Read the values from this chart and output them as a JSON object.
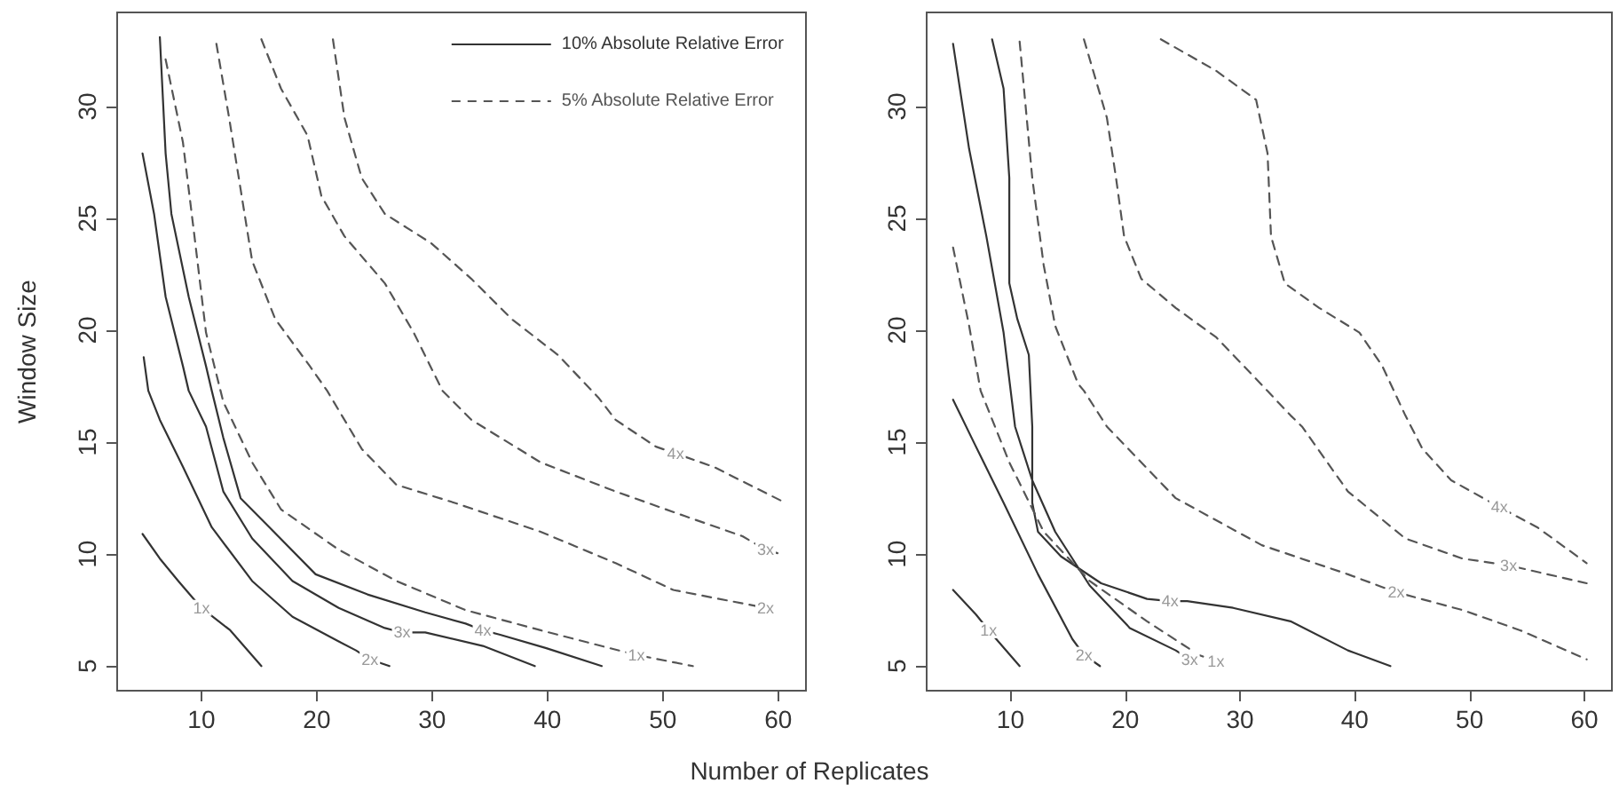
{
  "chart_data": [
    {
      "type": "line",
      "xlabel": "Number of Replicates",
      "ylabel": "Window Size",
      "xlim": [
        2.7,
        62.4
      ],
      "ylim": [
        3.9,
        34.2
      ],
      "xticks": [
        10,
        20,
        30,
        40,
        50,
        60
      ],
      "yticks": [
        5,
        10,
        15,
        20,
        25,
        30
      ],
      "grid": false,
      "legend": "top right",
      "marker": "none",
      "series": [
        {
          "name": "10% Absolute Relative Error",
          "color": "#333333",
          "line_style": "solid",
          "x": [
            4.9,
            6.4,
            8,
            10,
            12.5,
            15.2,
            null,
            5,
            5.4,
            6.4,
            8.4,
            10.9,
            14.4,
            17.9,
            21.9,
            23.4,
            24.6,
            26.3,
            null,
            4.9,
            5.9,
            6.9,
            8.4,
            8.9,
            10.4,
            11.9,
            14.4,
            17.9,
            21.9,
            25.9,
            27.4,
            29.4,
            34.4,
            38.9,
            null,
            6.4,
            6.9,
            7.4,
            8.9,
            10.4,
            10.9,
            11.9,
            13.4,
            15.9,
            19.9,
            24.4,
            29.4,
            32.9,
            34.4,
            35.9,
            39.9,
            44.7
          ],
          "values": [
            10.9,
            9.8,
            8.8,
            7.6,
            6.6,
            5,
            null,
            18.8,
            17.3,
            16,
            13.9,
            11.2,
            8.8,
            7.2,
            6.1,
            5.7,
            5.3,
            5,
            null,
            27.9,
            25.2,
            21.5,
            18.4,
            17.3,
            15.7,
            12.8,
            10.7,
            8.8,
            7.6,
            6.7,
            6.5,
            6.5,
            5.9,
            5,
            null,
            33.1,
            27.9,
            25.2,
            21.5,
            18.4,
            17.3,
            15.2,
            12.5,
            11.2,
            9.1,
            8.2,
            7.4,
            6.9,
            6.6,
            6.4,
            5.8,
            5
          ]
        },
        {
          "name": "5% Absolute Relative Error",
          "color": "#555555",
          "line_style": "dashed",
          "x": [
            6.9,
            8.4,
            9.4,
            10.4,
            11.9,
            14.4,
            16.9,
            21.9,
            26.9,
            32.9,
            39.4,
            45.4,
            47.7,
            52.6,
            null,
            11.3,
            12.4,
            13.4,
            14.4,
            16.4,
            19.4,
            20.9,
            23.9,
            26.9,
            31.9,
            39.4,
            45.9,
            50.9,
            55.9,
            58.9,
            null,
            15.2,
            16.9,
            19.2,
            20.4,
            22.4,
            25.9,
            28.4,
            30.9,
            33.4,
            39.4,
            45.9,
            51.9,
            56.9,
            58.9,
            60.2,
            null,
            21.4,
            22.4,
            23.9,
            25.9,
            29.9,
            33.4,
            36.9,
            40.9,
            44.4,
            45.9,
            49.4,
            51.1,
            54.4,
            60.2
          ],
          "values": [
            32.1,
            28.4,
            24.2,
            19.9,
            16.8,
            14.1,
            12,
            10.2,
            8.8,
            7.5,
            6.6,
            5.8,
            5.5,
            5,
            null,
            32.8,
            29.5,
            26.3,
            23.1,
            20.5,
            18.4,
            17.3,
            14.7,
            13.1,
            12.3,
            11,
            9.6,
            8.4,
            7.9,
            7.6,
            null,
            33,
            30.8,
            28.7,
            26,
            24.2,
            22.1,
            19.9,
            17.3,
            16,
            14.1,
            12.8,
            11.7,
            10.8,
            10.2,
            10,
            null,
            33,
            29.5,
            26.8,
            25.2,
            23.9,
            22.3,
            20.5,
            18.9,
            17,
            16,
            14.8,
            14.5,
            13.9,
            12.4
          ]
        }
      ],
      "annotations": [
        {
          "text": "1x",
          "x": 10,
          "y": 7.6
        },
        {
          "text": "2x",
          "x": 24.6,
          "y": 5.3
        },
        {
          "text": "3x",
          "x": 27.4,
          "y": 6.5
        },
        {
          "text": "4x",
          "x": 34.4,
          "y": 6.6
        },
        {
          "text": "1x",
          "x": 47.7,
          "y": 5.5
        },
        {
          "text": "2x",
          "x": 58.9,
          "y": 7.6
        },
        {
          "text": "3x",
          "x": 58.9,
          "y": 10.2
        },
        {
          "text": "4x",
          "x": 51.1,
          "y": 14.5
        }
      ]
    },
    {
      "type": "line",
      "xlim": [
        2.7,
        62.4
      ],
      "ylim": [
        3.9,
        34.2
      ],
      "xticks": [
        10,
        20,
        30,
        40,
        50,
        60
      ],
      "yticks": [
        5,
        10,
        15,
        20,
        25,
        30
      ],
      "grid": false,
      "marker": "none",
      "series": [
        {
          "color": "#333333",
          "line_style": "solid",
          "x": [
            5,
            7,
            8.1,
            10.8,
            null,
            5,
            6.9,
            9.4,
            12.4,
            15.4,
            16.4,
            17.8,
            null,
            5,
            6.4,
            7.9,
            9.4,
            10.4,
            11.9,
            13.9,
            16.9,
            20.4,
            24.4,
            25.6,
            null,
            8.4,
            9.4,
            9.9,
            9.9,
            10.6,
            11.6,
            11.9,
            11.9,
            12.4,
            14.4,
            17.9,
            21.9,
            23.9,
            25.4,
            29.4,
            34.4,
            39.4,
            43.1
          ],
          "values": [
            8.4,
            7.3,
            6.6,
            5,
            null,
            16.9,
            14.9,
            12.3,
            9.1,
            6.2,
            5.5,
            5,
            null,
            32.8,
            28.1,
            24.2,
            19.9,
            15.7,
            13.3,
            11,
            8.6,
            6.7,
            5.7,
            5.3,
            null,
            33,
            30.8,
            26.8,
            22.1,
            20.5,
            18.9,
            15.7,
            12.3,
            11,
            9.9,
            8.7,
            8,
            7.9,
            7.9,
            7.6,
            7,
            5.7,
            5
          ]
        },
        {
          "color": "#555555",
          "line_style": "dashed",
          "x": [
            5,
            6.4,
            7.4,
            9.9,
            12.9,
            16.9,
            21.9,
            26.4,
            27.9,
            null,
            10.8,
            11.9,
            12.9,
            13.9,
            15.9,
            16.4,
            18.4,
            24.4,
            31.9,
            39.4,
            43.6,
            49.4,
            54.4,
            60.2,
            null,
            16.4,
            18.4,
            19.2,
            19.9,
            21.4,
            24.4,
            27.9,
            30.9,
            34.4,
            35.4,
            39.4,
            44.4,
            49.4,
            53.4,
            60.2,
            null,
            23.1,
            27.9,
            31.4,
            32.4,
            32.7,
            33.9,
            36.9,
            40.4,
            42.4,
            44.4,
            45.9,
            48.4,
            52.6,
            55.9,
            60.2
          ],
          "values": [
            23.7,
            20.2,
            17.3,
            14.1,
            11,
            8.8,
            7,
            5.5,
            5.2,
            null,
            32.9,
            26.8,
            22.9,
            20.2,
            17.6,
            17.3,
            15.7,
            12.5,
            10.4,
            9.1,
            8.3,
            7.5,
            6.6,
            5.3,
            null,
            33,
            29.5,
            26.8,
            24.2,
            22.3,
            21,
            19.7,
            18.1,
            16.2,
            15.7,
            12.8,
            10.7,
            9.8,
            9.5,
            8.7,
            null,
            33,
            31.6,
            30.3,
            27.9,
            24.2,
            22.1,
            21,
            19.9,
            18.4,
            16.2,
            14.7,
            13.3,
            12.1,
            11.2,
            9.6
          ]
        }
      ],
      "annotations": [
        {
          "text": "1x",
          "x": 8.1,
          "y": 6.6
        },
        {
          "text": "2x",
          "x": 16.4,
          "y": 5.5
        },
        {
          "text": "3x",
          "x": 25.6,
          "y": 5.3
        },
        {
          "text": "4x",
          "x": 23.9,
          "y": 7.9
        },
        {
          "text": "1x",
          "x": 27.9,
          "y": 5.2
        },
        {
          "text": "2x",
          "x": 43.6,
          "y": 8.3
        },
        {
          "text": "3x",
          "x": 53.4,
          "y": 9.5
        },
        {
          "text": "4x",
          "x": 52.6,
          "y": 12.1
        }
      ]
    }
  ]
}
